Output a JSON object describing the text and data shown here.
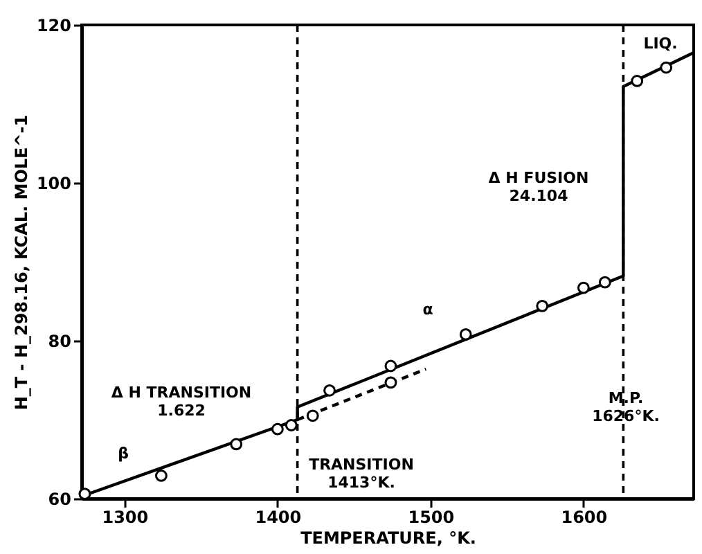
{
  "chart_data": {
    "type": "line",
    "xlabel": "TEMPERATURE, °K.",
    "ylabel": "H_T - H_298.16, KCAL. MOLE^-1",
    "xlim": [
      1272,
      1672
    ],
    "ylim": [
      60,
      120
    ],
    "xticks": [
      1300,
      1400,
      1500,
      1600
    ],
    "yticks": [
      60,
      80,
      100,
      120
    ],
    "grid": false,
    "series": [
      {
        "color": "#000000",
        "line_style": "solid",
        "marker": "none",
        "x": [
          1275,
          1413,
          1413,
          1626,
          1626,
          1672
        ],
        "values": [
          60.5,
          70.0,
          71.6,
          88.2,
          112.2,
          116.5
        ]
      },
      {
        "color": "#000000",
        "line_style": "dashed",
        "marker": "none",
        "x": [
          1413,
          1497
        ],
        "values": [
          70.0,
          76.4
        ]
      },
      {
        "type": "scatter",
        "color": "#000000",
        "marker": "circle",
        "x": [
          1274,
          1324,
          1373,
          1400,
          1409,
          1423,
          1434,
          1474,
          1474,
          1523,
          1573,
          1600,
          1614,
          1635,
          1654
        ],
        "values": [
          60.6,
          62.9,
          66.9,
          68.8,
          69.3,
          70.5,
          73.7,
          76.8,
          74.7,
          80.8,
          84.4,
          86.7,
          87.4,
          112.9,
          114.6
        ]
      }
    ],
    "ref_lines": [
      {
        "axis": "x",
        "value": 1413,
        "label": null,
        "color": "#000000",
        "line_style": "dashed"
      },
      {
        "axis": "x",
        "value": 1626,
        "label": null,
        "color": "#000000",
        "line_style": "dashed"
      }
    ],
    "annotations": [
      "Δ H TRANSITION\n1.622",
      "TRANSITION\n1413°K.",
      "Δ H FUSION\n24.104",
      "M.P.\n1626°K.",
      "α",
      "β",
      "LIQ."
    ]
  }
}
